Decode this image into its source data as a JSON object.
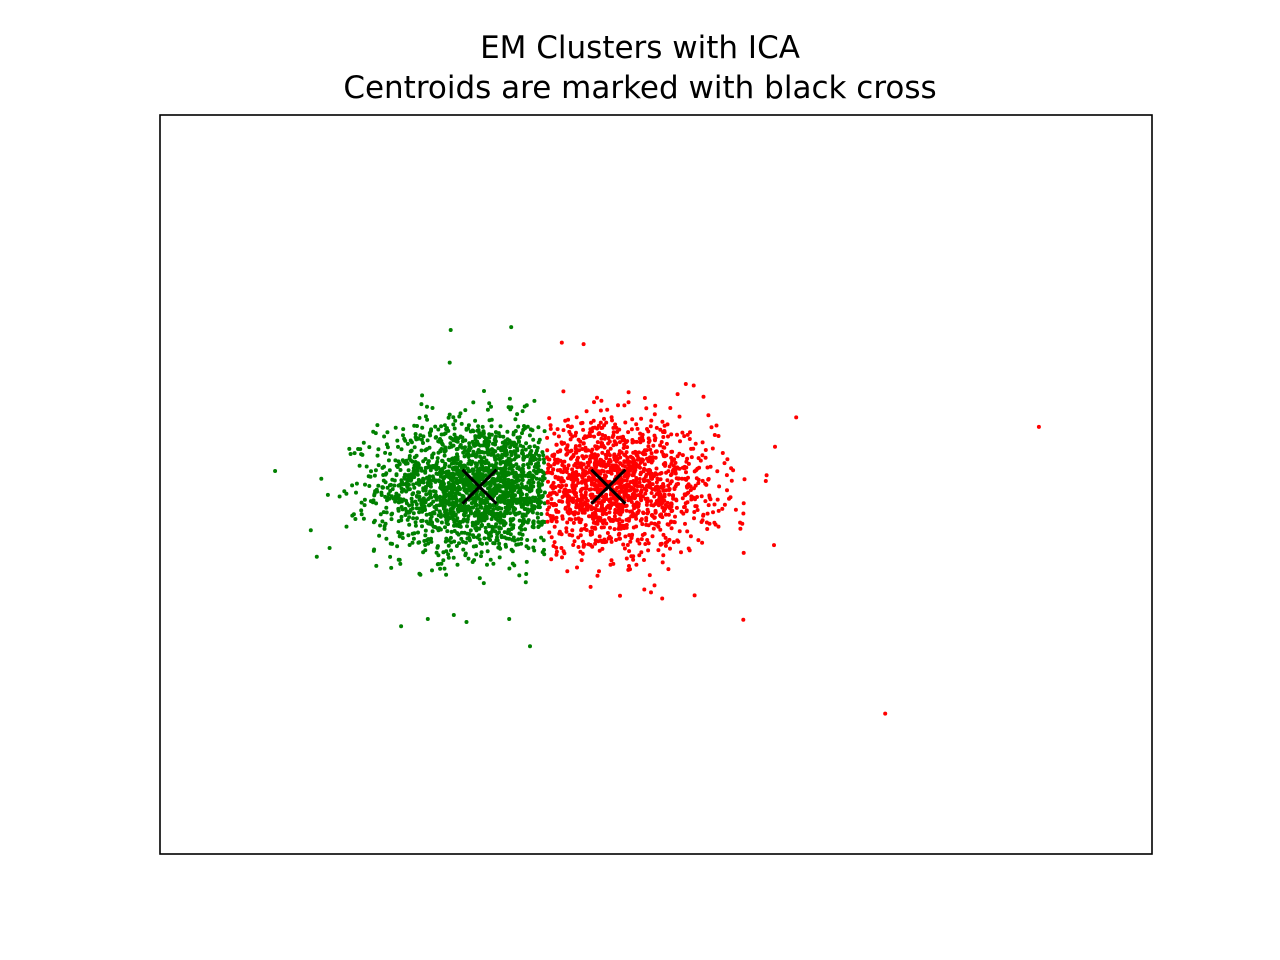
{
  "chart_data": {
    "type": "scatter",
    "title": "EM Clusters with ICA",
    "subtitle": "Centroids are marked with black cross",
    "xlabel": "",
    "ylabel": "",
    "xticks": [],
    "yticks": [],
    "grid": false,
    "legend": "none",
    "xlim": [
      0,
      1
    ],
    "ylim": [
      0,
      1
    ],
    "clusters": [
      {
        "color": "#008000",
        "center": [
          0.322,
          0.497
        ],
        "spread": [
          0.051,
          0.045
        ],
        "x_max": 0.388,
        "count": 1900,
        "outliers": [
          [
            0.152,
            0.438
          ],
          [
            0.188,
            0.443
          ],
          [
            0.27,
            0.318
          ],
          [
            0.309,
            0.314
          ],
          [
            0.352,
            0.318
          ],
          [
            0.373,
            0.281
          ],
          [
            0.293,
            0.709
          ],
          [
            0.354,
            0.713
          ],
          [
            0.292,
            0.665
          ],
          [
            0.204,
            0.54
          ]
        ]
      },
      {
        "color": "#ff0000",
        "center": [
          0.453,
          0.497
        ],
        "spread": [
          0.052,
          0.043
        ],
        "x_min": 0.39,
        "count": 1500,
        "outliers": [
          [
            0.886,
            0.578
          ],
          [
            0.731,
            0.19
          ],
          [
            0.619,
            0.418
          ],
          [
            0.588,
            0.317
          ],
          [
            0.495,
            0.354
          ],
          [
            0.62,
            0.551
          ],
          [
            0.538,
            0.634
          ],
          [
            0.405,
            0.692
          ],
          [
            0.427,
            0.69
          ],
          [
            0.53,
            0.636
          ],
          [
            0.587,
            0.447
          ],
          [
            0.563,
            0.443
          ]
        ]
      }
    ],
    "centroids": [
      {
        "x": 0.322,
        "y": 0.497,
        "marker": "x",
        "color": "#000000"
      },
      {
        "x": 0.452,
        "y": 0.497,
        "marker": "x",
        "color": "#000000"
      }
    ]
  }
}
